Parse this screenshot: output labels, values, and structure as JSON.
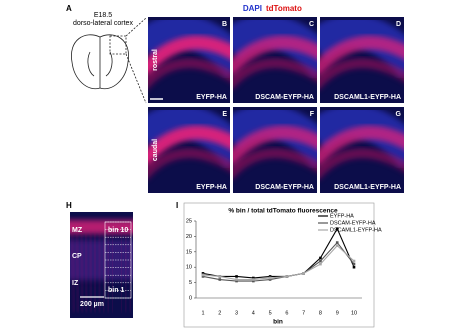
{
  "figure": {
    "panel_a": {
      "label": "A",
      "stage": "E18.5",
      "region": "dorso-lateral cortex"
    },
    "stain": {
      "dapi": "DAPI",
      "tdtomato": "tdTomato"
    },
    "rows": [
      "rostral",
      "caudal"
    ],
    "images": [
      {
        "label": "B",
        "caption": "EYFP-HA"
      },
      {
        "label": "C",
        "caption": "DSCAM-EYFP-HA"
      },
      {
        "label": "D",
        "caption": "DSCAML1-EYFP-HA"
      },
      {
        "label": "E",
        "caption": "EYFP-HA"
      },
      {
        "label": "F",
        "caption": "DSCAM-EYFP-HA"
      },
      {
        "label": "G",
        "caption": "DSCAML1-EYFP-HA"
      }
    ],
    "panel_h": {
      "label": "H",
      "layers": [
        "MZ",
        "CP",
        "IZ"
      ],
      "bin_top": "bin 10",
      "bin_bottom": "bin 1",
      "scale": "200 µm"
    },
    "panel_i_label": "I"
  },
  "chart_data": {
    "type": "line",
    "title": "% bin / total tdTomato fluorescence",
    "x_label": "bin",
    "categories": [
      "1",
      "2",
      "3",
      "4",
      "5",
      "6",
      "7",
      "8",
      "9",
      "10"
    ],
    "ylim": [
      0,
      25
    ],
    "yticks": [
      0,
      5,
      10,
      15,
      20,
      25
    ],
    "series": [
      {
        "name": "EYFP-HA",
        "color": "#000000",
        "values": [
          8,
          7,
          7,
          6.5,
          7,
          7,
          8,
          13,
          22.5,
          10
        ]
      },
      {
        "name": "DSCAM-EYFP-HA",
        "color": "#555555",
        "values": [
          7,
          6,
          5.5,
          5.5,
          6,
          7,
          8,
          12,
          18,
          11
        ]
      },
      {
        "name": "DSCAML1-EYFP-HA",
        "color": "#a8a8a8",
        "values": [
          7.5,
          7,
          6,
          6,
          6.5,
          7,
          8,
          11,
          17,
          12
        ]
      }
    ]
  }
}
